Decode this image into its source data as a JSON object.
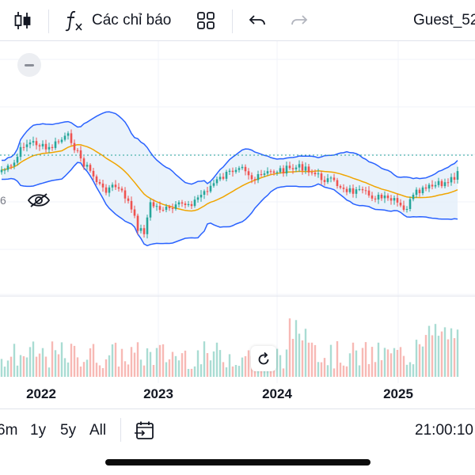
{
  "toolbar": {
    "indicators_label": "Các chỉ báo",
    "user_label": "Guest_52"
  },
  "chart": {
    "x_axis_years": [
      "2022",
      "2023",
      "2024",
      "2025"
    ],
    "partial_price_label": "6",
    "colors": {
      "up": "#26a69a",
      "down": "#ef5350",
      "bollinger_band": "#2962ff",
      "bollinger_fill": "#e3effa",
      "moving_average": "#f0a500",
      "last_price_line": "#26a69a"
    }
  },
  "bottom": {
    "ranges": [
      "6m",
      "1y",
      "5y",
      "All"
    ],
    "time": "21:00:10"
  }
}
